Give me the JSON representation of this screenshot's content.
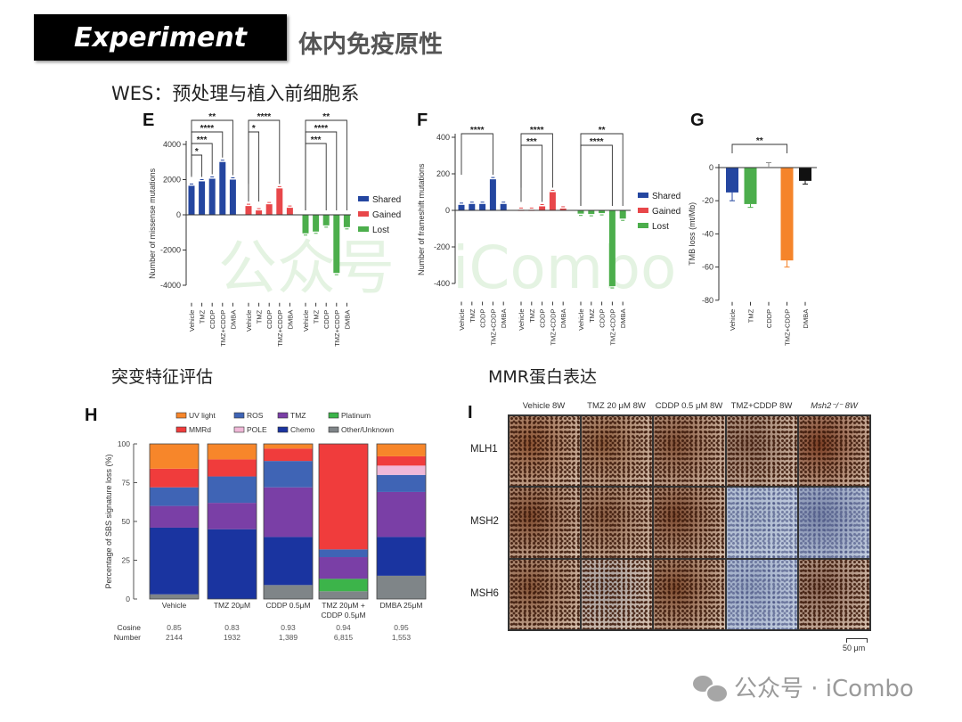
{
  "header": {
    "tag": "Experiment",
    "title": "体内免疫原性"
  },
  "subtitle": "WES：预处理与植入前细胞系",
  "sections": {
    "signature": "突变特征评估",
    "mmr": "MMR蛋白表达"
  },
  "watermark": {
    "left": "公众号",
    "right": "iCombo"
  },
  "footer": {
    "icon": "wechat-icon",
    "text": "公众号 · iCombo"
  },
  "chart_data": [
    {
      "panel": "E",
      "type": "bar",
      "ylabel": "Number of missense mutations",
      "ylim": [
        -5000,
        4000
      ],
      "yticks": [
        4000,
        2000,
        0,
        -2000,
        -4000
      ],
      "categories": [
        "Vehicle",
        "TMZ",
        "CDDP",
        "TMZ+CDDP",
        "DMBA"
      ],
      "series": [
        {
          "name": "Shared",
          "color": "#2446a0",
          "values": [
            1650,
            1900,
            2050,
            3000,
            2000
          ]
        },
        {
          "name": "Gained",
          "color": "#e8474a",
          "values": [
            500,
            250,
            600,
            1500,
            400
          ]
        },
        {
          "name": "Lost",
          "color": "#4cae4c",
          "values": [
            -1050,
            -950,
            -600,
            -3300,
            -700
          ]
        }
      ],
      "legend": "right",
      "significance": [
        {
          "series": "Shared",
          "from": "Vehicle",
          "to": "TMZ",
          "label": "*"
        },
        {
          "series": "Shared",
          "from": "Vehicle",
          "to": "CDDP",
          "label": "***"
        },
        {
          "series": "Shared",
          "from": "Vehicle",
          "to": "TMZ+CDDP",
          "label": "****"
        },
        {
          "series": "Shared",
          "from": "Vehicle",
          "to": "DMBA",
          "label": "**"
        },
        {
          "series": "Gained",
          "from": "Vehicle",
          "to": "TMZ",
          "label": "*"
        },
        {
          "series": "Gained",
          "from": "Vehicle",
          "to": "TMZ+CDDP",
          "label": "****"
        },
        {
          "series": "Lost",
          "from": "Vehicle",
          "to": "CDDP",
          "label": "***"
        },
        {
          "series": "Lost",
          "from": "Vehicle",
          "to": "TMZ+CDDP",
          "label": "****"
        },
        {
          "series": "Lost",
          "from": "Vehicle",
          "to": "DMBA",
          "label": "**"
        }
      ]
    },
    {
      "panel": "F",
      "type": "bar",
      "ylabel": "Number of frameshift mutations",
      "ylim": [
        -500,
        400
      ],
      "yticks": [
        400,
        200,
        0,
        -200,
        -400
      ],
      "categories": [
        "Vehicle",
        "TMZ",
        "CDDP",
        "TMZ+CDDP",
        "DMBA"
      ],
      "series": [
        {
          "name": "Shared",
          "color": "#2446a0",
          "values": [
            30,
            35,
            35,
            170,
            35
          ]
        },
        {
          "name": "Gained",
          "color": "#e8474a",
          "values": [
            3,
            3,
            22,
            100,
            10
          ]
        },
        {
          "name": "Lost",
          "color": "#4cae4c",
          "values": [
            -18,
            -20,
            -15,
            -415,
            -45
          ]
        }
      ],
      "legend": "right",
      "significance": [
        {
          "series": "Shared",
          "from": "Vehicle",
          "to": "TMZ+CDDP",
          "label": "****"
        },
        {
          "series": "Gained",
          "from": "Vehicle",
          "to": "CDDP",
          "label": "***"
        },
        {
          "series": "Gained",
          "from": "Vehicle",
          "to": "TMZ+CDDP",
          "label": "****"
        },
        {
          "series": "Lost",
          "from": "Vehicle",
          "to": "TMZ+CDDP",
          "label": "****"
        },
        {
          "series": "Lost",
          "from": "Vehicle",
          "to": "DMBA",
          "label": "**"
        }
      ]
    },
    {
      "panel": "G",
      "type": "bar",
      "ylabel": "TMB loss (mt/Mb)",
      "ylim": [
        -80,
        10
      ],
      "yticks": [
        0,
        -20,
        -40,
        -60,
        -80
      ],
      "categories": [
        "Vehicle",
        "TMZ",
        "CDDP",
        "TMZ+CDDP",
        "DMBA"
      ],
      "values": [
        -15,
        -22,
        0.5,
        -56,
        -8
      ],
      "errors": [
        5,
        2,
        2.5,
        4,
        2
      ],
      "colors": [
        "#2446a0",
        "#4cae4c",
        "#888888",
        "#f5842a",
        "#111111"
      ],
      "significance": [
        {
          "from": "Vehicle",
          "to": "TMZ+CDDP",
          "label": "**"
        }
      ]
    },
    {
      "panel": "H",
      "type": "bar",
      "stacked": true,
      "ylabel": "Percentage of SBS signature loss (%)",
      "ylim": [
        0,
        100
      ],
      "yticks": [
        0,
        25,
        50,
        75,
        100
      ],
      "categories": [
        "Vehicle",
        "TMZ 20μM",
        "CDDP 0.5μM",
        "TMZ 20μM + CDDP 0.5μM",
        "DMBA 25μM"
      ],
      "legend_order": [
        "UV light",
        "ROS",
        "TMZ",
        "Platinum",
        "MMRd",
        "POLE",
        "Chemo",
        "Other/Unknown"
      ],
      "series": [
        {
          "name": "Other/Unknown",
          "color": "#7f8588",
          "values": [
            3,
            0,
            9,
            5,
            15
          ]
        },
        {
          "name": "Platinum",
          "color": "#3cb44a",
          "values": [
            0,
            0,
            0,
            8,
            0
          ]
        },
        {
          "name": "Chemo",
          "color": "#1a34a0",
          "values": [
            43,
            45,
            31,
            0,
            25
          ]
        },
        {
          "name": "TMZ",
          "color": "#7a3fa6",
          "values": [
            14,
            17,
            32,
            14,
            29
          ]
        },
        {
          "name": "ROS",
          "color": "#3f64b5",
          "values": [
            12,
            17,
            17,
            5,
            11
          ]
        },
        {
          "name": "POLE",
          "color": "#f0b8d8",
          "values": [
            0,
            0,
            0,
            0,
            6
          ]
        },
        {
          "name": "MMRd",
          "color": "#f03c3c",
          "values": [
            12,
            11,
            8,
            68,
            6
          ]
        },
        {
          "name": "UV light",
          "color": "#f7862a",
          "values": [
            16,
            10,
            3,
            0,
            8
          ]
        }
      ],
      "rows": [
        {
          "label": "Cosine",
          "values": [
            "0.85",
            "0.83",
            "0.93",
            "0.94",
            "0.95"
          ]
        },
        {
          "label": "Number",
          "values": [
            "2144",
            "1932",
            "1,389",
            "6,815",
            "1,553"
          ]
        }
      ],
      "legend": "top"
    }
  ],
  "ihc": {
    "panel": "I",
    "columns": [
      "Vehicle 8W",
      "TMZ 20 μM 8W",
      "CDDP 0.5 μM 8W",
      "TMZ+CDDP 8W",
      "Msh2⁻/⁻ 8W"
    ],
    "rows": [
      {
        "label": "MLH1",
        "tones": [
          "#8a5232",
          "#8a5a3c",
          "#84543a",
          "#8c6a58",
          "#7a3e24"
        ]
      },
      {
        "label": "MSH2",
        "tones": [
          "#7e4a2e",
          "#8a5e44",
          "#7c4a30",
          "#a9b6cc",
          "#7a86a8"
        ]
      },
      {
        "label": "MSH6",
        "tones": [
          "#86563a",
          "#a39c9c",
          "#7e4c30",
          "#98a6c2",
          "#8a6656"
        ]
      }
    ],
    "scale_bar": "50 μm"
  }
}
